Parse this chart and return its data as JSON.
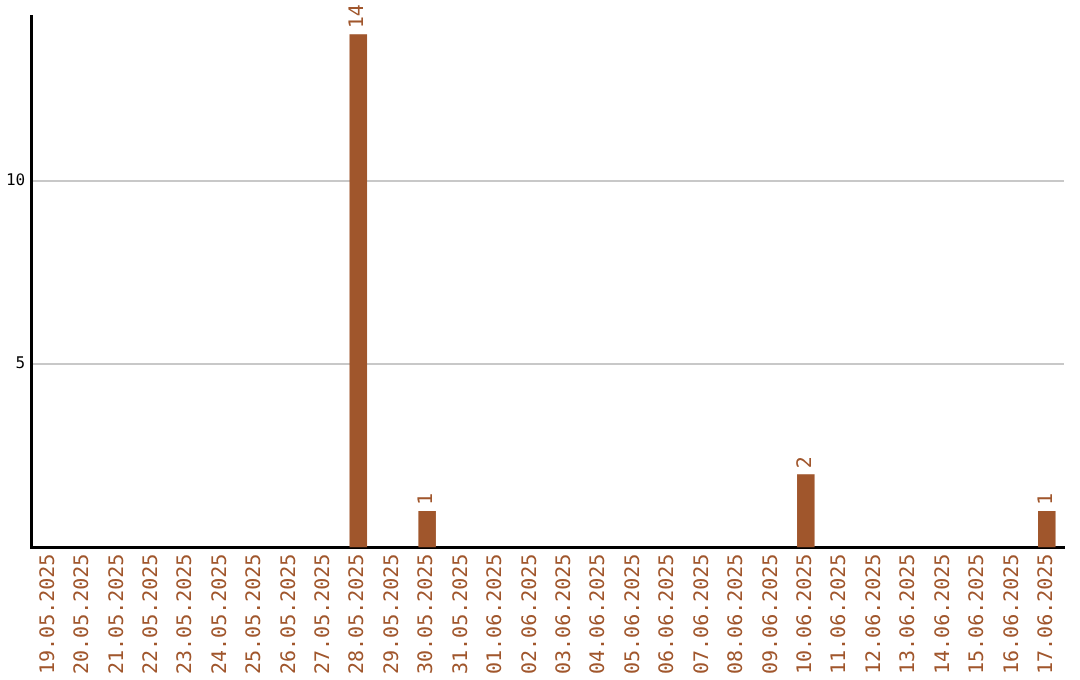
{
  "chart_data": {
    "type": "bar",
    "categories": [
      "19.05.2025",
      "20.05.2025",
      "21.05.2025",
      "22.05.2025",
      "23.05.2025",
      "24.05.2025",
      "25.05.2025",
      "26.05.2025",
      "27.05.2025",
      "28.05.2025",
      "29.05.2025",
      "30.05.2025",
      "31.05.2025",
      "01.06.2025",
      "02.06.2025",
      "03.06.2025",
      "04.06.2025",
      "05.06.2025",
      "06.06.2025",
      "07.06.2025",
      "08.06.2025",
      "09.06.2025",
      "10.06.2025",
      "11.06.2025",
      "12.06.2025",
      "13.06.2025",
      "14.06.2025",
      "15.06.2025",
      "16.06.2025",
      "17.06.2025"
    ],
    "values": [
      0,
      0,
      0,
      0,
      0,
      0,
      0,
      0,
      0,
      14,
      0,
      1,
      0,
      0,
      0,
      0,
      0,
      0,
      0,
      0,
      0,
      0,
      2,
      0,
      0,
      0,
      0,
      0,
      0,
      1
    ],
    "value_labels": [
      null,
      null,
      null,
      null,
      null,
      null,
      null,
      null,
      null,
      "14",
      null,
      "1",
      null,
      null,
      null,
      null,
      null,
      null,
      null,
      null,
      null,
      null,
      "2",
      null,
      null,
      null,
      null,
      null,
      null,
      "1"
    ],
    "color": "#a0562c",
    "ylim": [
      0,
      14.5
    ],
    "yticks": [
      5,
      10
    ],
    "grid": "y",
    "legend": false
  }
}
